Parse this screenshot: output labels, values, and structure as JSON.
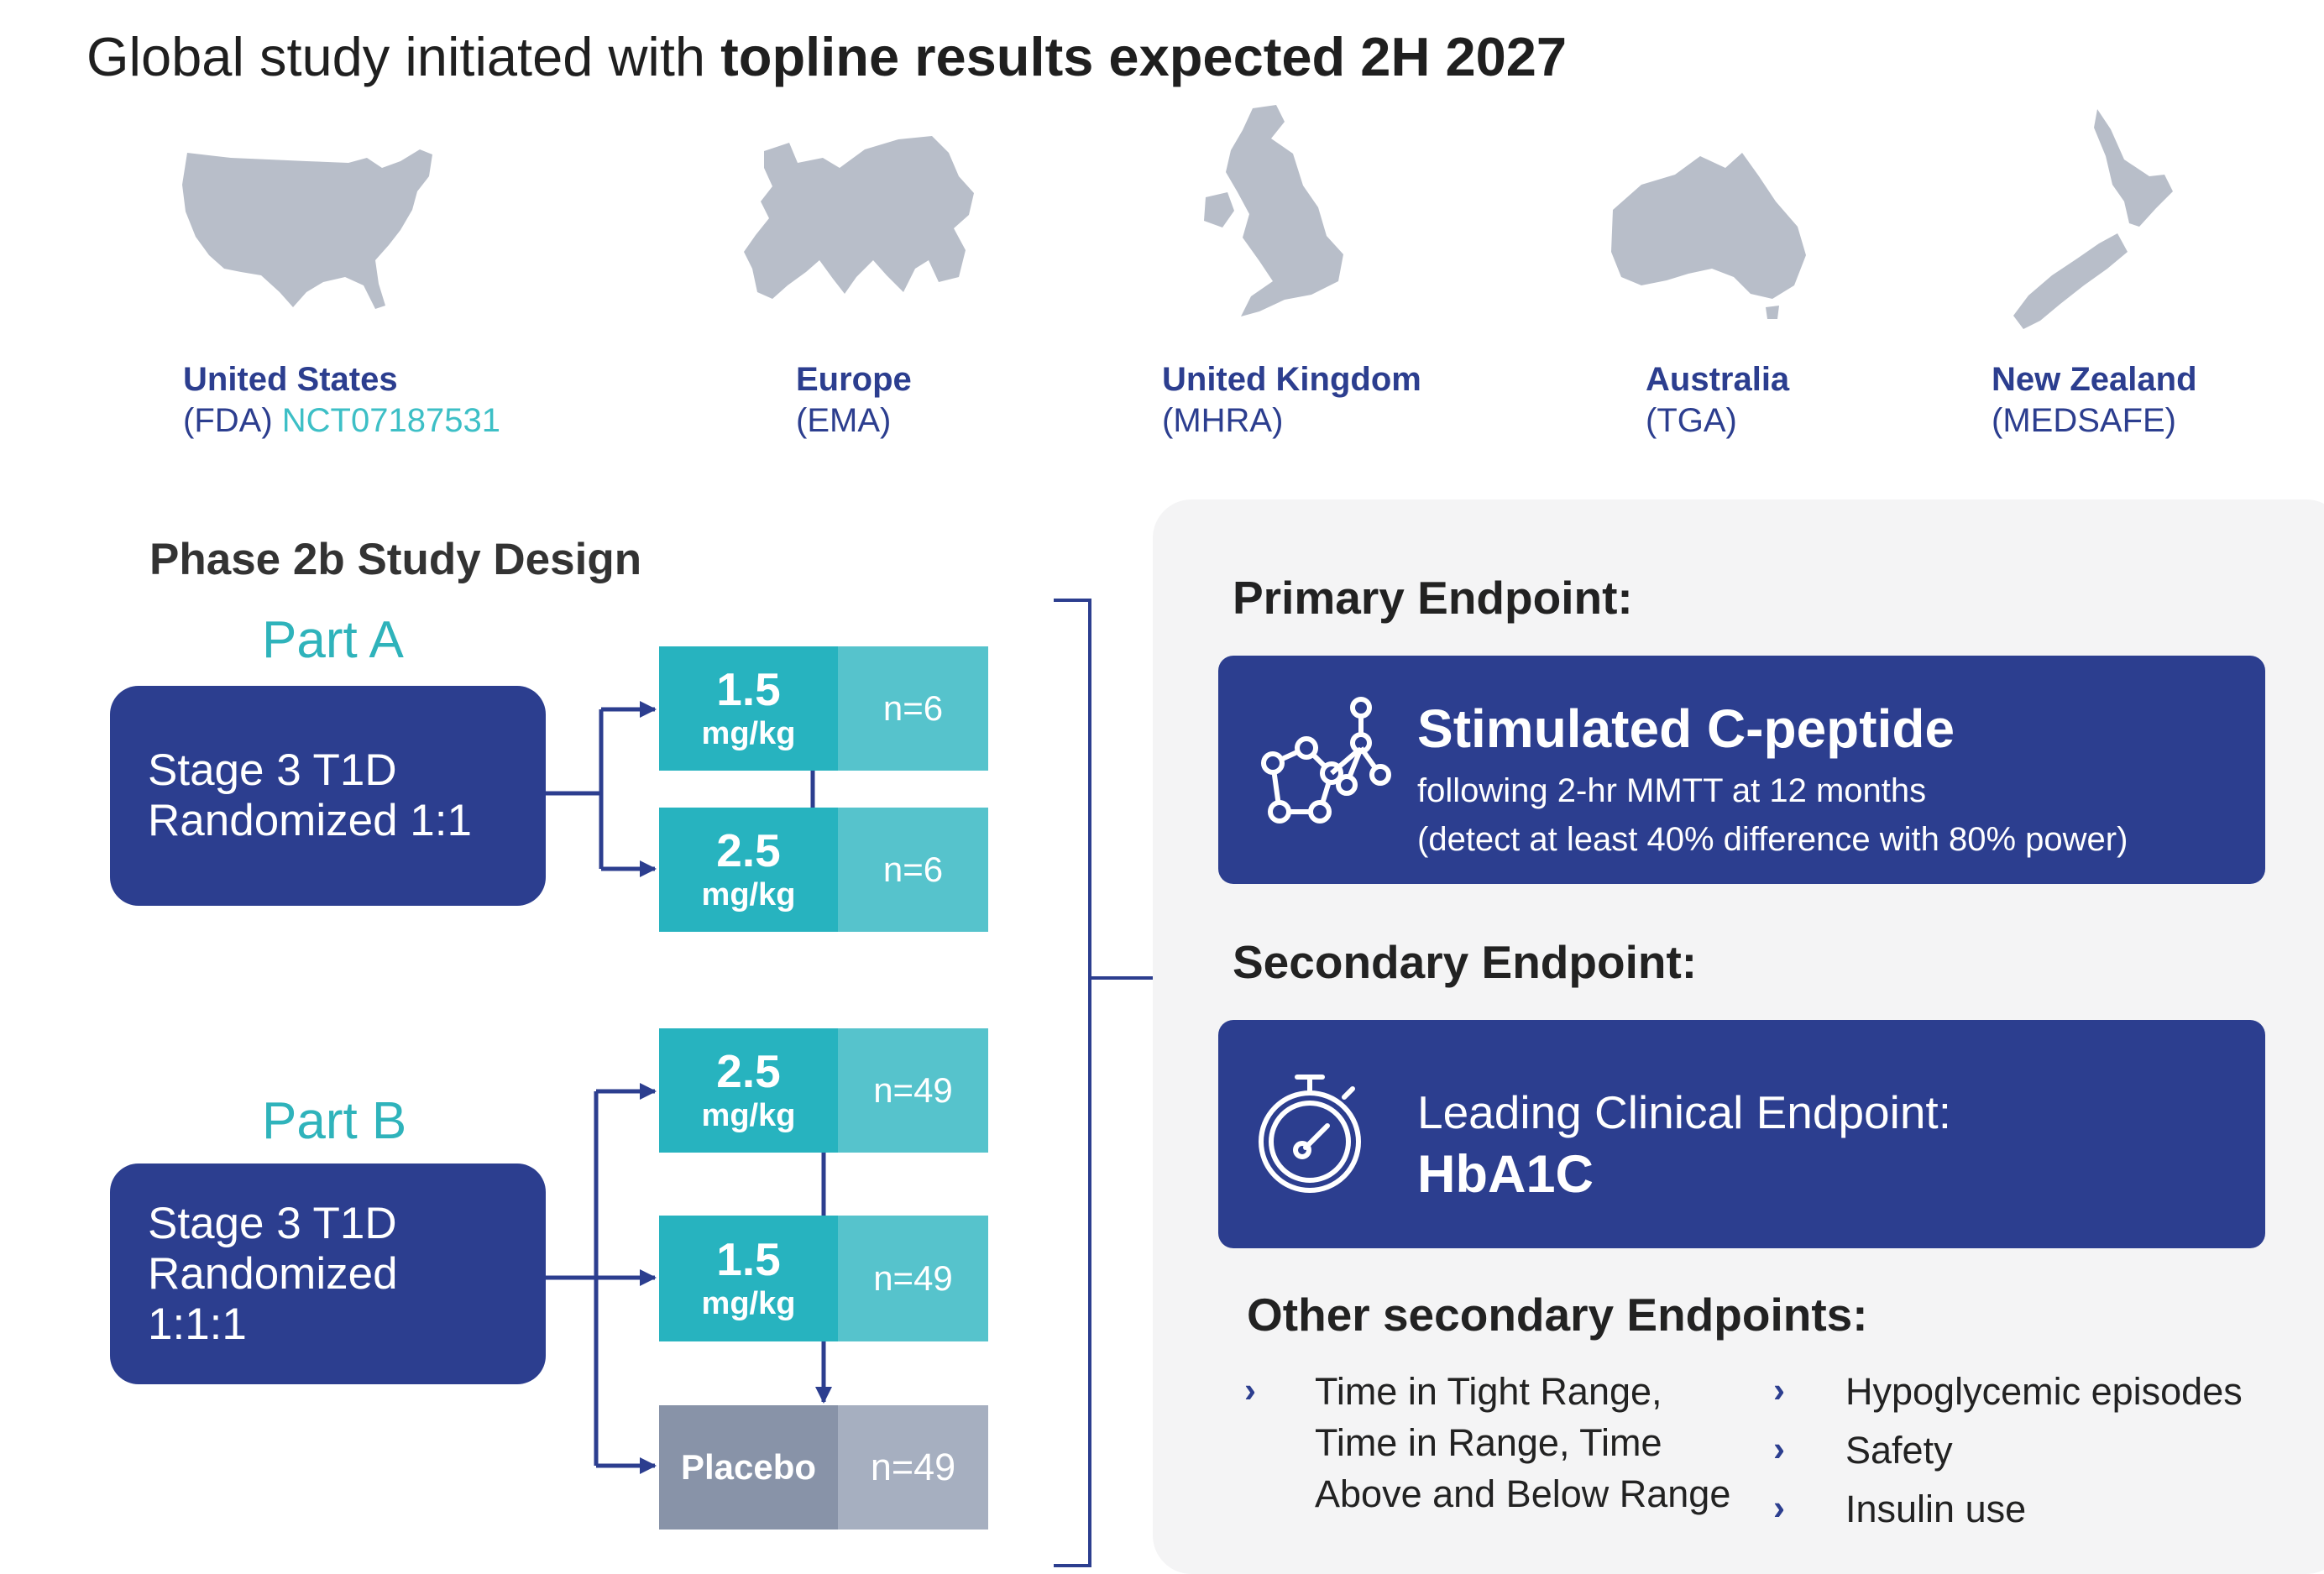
{
  "title": {
    "prefix": "Global study initiated with ",
    "bold": "topline results expected 2H 2027"
  },
  "regions": [
    {
      "name": "United States",
      "agency": "(FDA)",
      "trial_id": "NCT07187531",
      "icon": "usa-map-icon"
    },
    {
      "name": "Europe",
      "agency": "(EMA)",
      "icon": "europe-map-icon"
    },
    {
      "name": "United Kingdom",
      "agency": "(MHRA)",
      "icon": "uk-map-icon"
    },
    {
      "name": "Australia",
      "agency": "(TGA)",
      "icon": "australia-map-icon"
    },
    {
      "name": "New Zealand",
      "agency": "(MEDSAFE)",
      "icon": "new-zealand-map-icon"
    }
  ],
  "design": {
    "heading": "Phase 2b Study Design",
    "part_a": {
      "label": "Part A",
      "box_line1": "Stage 3 T1D",
      "box_line2": "Randomized 1:1",
      "arms": [
        {
          "dose": "1.5",
          "unit": "mg/kg",
          "n": "n=6"
        },
        {
          "dose": "2.5",
          "unit": "mg/kg",
          "n": "n=6"
        }
      ]
    },
    "part_b": {
      "label": "Part B",
      "box_line1": "Stage 3 T1D",
      "box_line2": "Randomized",
      "box_line3": "1:1:1",
      "arms": [
        {
          "dose": "2.5",
          "unit": "mg/kg",
          "n": "n=49"
        },
        {
          "dose": "1.5",
          "unit": "mg/kg",
          "n": "n=49"
        },
        {
          "dose": "Placebo",
          "n": "n=49"
        }
      ]
    }
  },
  "endpoints": {
    "primary_heading": "Primary Endpoint:",
    "primary_title": "Stimulated C-peptide",
    "primary_sub1": "following 2-hr MMTT at 12 months",
    "primary_sub2": "(detect at least 40% difference with 80% power)",
    "primary_icon": "molecule-icon",
    "secondary_heading": "Secondary Endpoint:",
    "secondary_line1": "Leading Clinical Endpoint:",
    "secondary_line2": "HbA1C",
    "secondary_icon": "stopwatch-icon",
    "other_heading": "Other secondary Endpoints:",
    "other_left": [
      "Time in Tight Range,",
      "Time in Range, Time",
      "Above and Below Range"
    ],
    "other_right": [
      "Hypoglycemic episodes",
      "Safety",
      "Insulin use"
    ],
    "bullet_glyph": "›"
  },
  "colors": {
    "navy": "#2c3e8f",
    "teal": "#27b3bf",
    "teal_light": "#56c3cc",
    "map_grey": "#b8bec9"
  }
}
